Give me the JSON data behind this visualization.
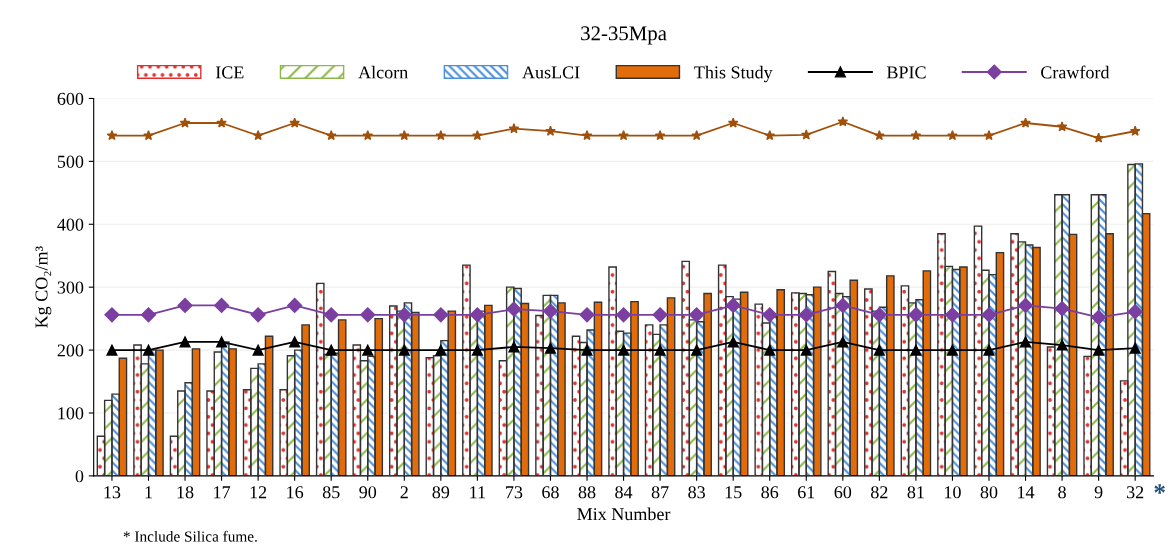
{
  "chart_data": {
    "type": "bar",
    "title": "32-35Mpa",
    "xlabel": "Mix Number",
    "ylabel": "Kg CO₂/m³",
    "categories": [
      "13",
      "1",
      "18",
      "17",
      "12",
      "16",
      "85",
      "90",
      "2",
      "89",
      "11",
      "73",
      "68",
      "88",
      "84",
      "87",
      "83",
      "15",
      "86",
      "61",
      "60",
      "82",
      "81",
      "10",
      "80",
      "14",
      "8",
      "9",
      "32"
    ],
    "series": [
      {
        "name": "ICE",
        "color": "#e03030",
        "values": [
          63,
          208,
          63,
          135,
          137,
          137,
          306,
          208,
          270,
          188,
          335,
          183,
          255,
          222,
          332,
          240,
          341,
          335,
          273,
          291,
          325,
          297,
          302,
          385,
          397,
          385,
          205,
          190,
          151
        ]
      },
      {
        "name": "Alcorn",
        "color": "#8db84a",
        "values": [
          120,
          178,
          135,
          197,
          171,
          191,
          193,
          183,
          262,
          191,
          255,
          300,
          287,
          212,
          230,
          225,
          248,
          285,
          243,
          290,
          290,
          262,
          275,
          333,
          327,
          372,
          447,
          447,
          495
        ]
      },
      {
        "name": "AusLCI",
        "color": "#4a8fd8",
        "values": [
          130,
          200,
          148,
          213,
          178,
          200,
          195,
          190,
          275,
          215,
          262,
          298,
          287,
          232,
          227,
          240,
          245,
          281,
          253,
          288,
          285,
          268,
          280,
          328,
          320,
          367,
          447,
          447,
          496
        ]
      },
      {
        "name": "This Study",
        "color": "#e36c0a",
        "values": [
          187,
          200,
          202,
          202,
          222,
          240,
          248,
          250,
          260,
          262,
          271,
          274,
          275,
          276,
          277,
          283,
          290,
          292,
          296,
          300,
          311,
          318,
          326,
          332,
          355,
          363,
          384,
          385,
          417
        ]
      },
      {
        "name": "BPIC",
        "type": "line",
        "color": "#000000",
        "marker": "triangle",
        "values": [
          200,
          200,
          213,
          213,
          200,
          213,
          200,
          200,
          200,
          200,
          200,
          205,
          203,
          200,
          200,
          200,
          200,
          213,
          200,
          200,
          213,
          200,
          200,
          200,
          200,
          213,
          208,
          200,
          203
        ]
      },
      {
        "type": "line",
        "color": "#a0500a",
        "marker": "star",
        "values": [
          541,
          541,
          561,
          561,
          541,
          561,
          541,
          541,
          541,
          541,
          541,
          552,
          548,
          541,
          541,
          541,
          541,
          561,
          541,
          542,
          563,
          541,
          541,
          541,
          541,
          561,
          555,
          537,
          548
        ]
      },
      {
        "name": "Crawford",
        "type": "line",
        "color": "#7a3fa0",
        "marker": "diamond",
        "values": [
          256,
          256,
          271,
          271,
          256,
          271,
          256,
          256,
          256,
          256,
          256,
          265,
          262,
          256,
          256,
          256,
          256,
          271,
          256,
          256,
          271,
          256,
          256,
          256,
          256,
          271,
          266,
          252,
          261
        ]
      }
    ],
    "ylim": [
      0,
      600
    ],
    "yticks": [
      0,
      100,
      200,
      300,
      400,
      500,
      600
    ],
    "grid": "y",
    "legend": "top",
    "annotations": [
      "* Include Silica fume.",
      "*"
    ]
  }
}
